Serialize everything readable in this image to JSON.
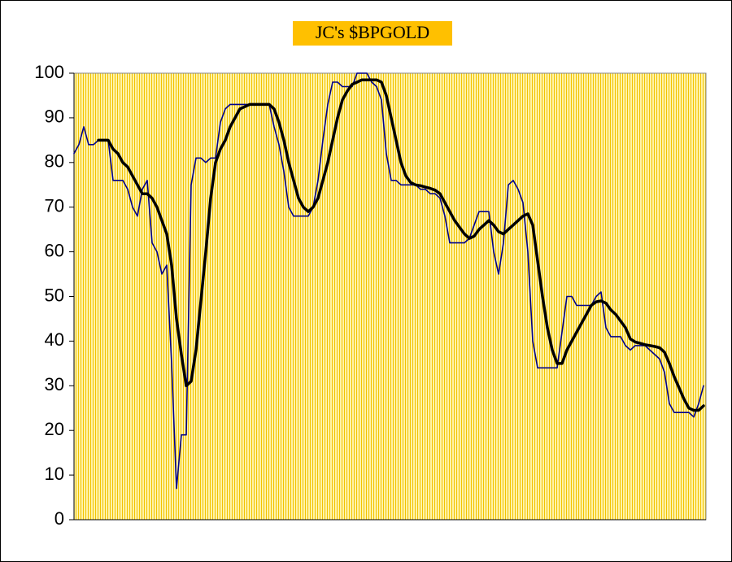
{
  "chart_data": {
    "type": "line",
    "title": "JC's $BPGOLD",
    "ylim": [
      0,
      100
    ],
    "yticks": [
      0,
      10,
      20,
      30,
      40,
      50,
      60,
      70,
      80,
      90,
      100
    ],
    "series": [
      {
        "color": "#00008b",
        "values": [
          82,
          84,
          88,
          84,
          84,
          85,
          85,
          85,
          76,
          76,
          76,
          74,
          70,
          68,
          74,
          76,
          62,
          60,
          55,
          57,
          35,
          7,
          19,
          19,
          75,
          81,
          81,
          80,
          81,
          81,
          89,
          92,
          93,
          93,
          93,
          93,
          93,
          93,
          93,
          93,
          93,
          88,
          84,
          78,
          70,
          68,
          68,
          68,
          68,
          70,
          76,
          85,
          93,
          98,
          98,
          97,
          97,
          97,
          100,
          100,
          100,
          98,
          97,
          94,
          82,
          76,
          76,
          75,
          75,
          75,
          75,
          74,
          74,
          73,
          73,
          72,
          68,
          62,
          62,
          62,
          62,
          63,
          66,
          69,
          69,
          69,
          60,
          55,
          62,
          75,
          76,
          74,
          71,
          60,
          40,
          34,
          34,
          34,
          34,
          34,
          42,
          50,
          50,
          48,
          48,
          48,
          48,
          50,
          51,
          43,
          41,
          41,
          41,
          39,
          38,
          39,
          39,
          39,
          38,
          37,
          36,
          33,
          26,
          24,
          24,
          24,
          24,
          23,
          26,
          30
        ]
      },
      {
        "color": "#000000",
        "values": [
          null,
          null,
          null,
          null,
          null,
          85,
          85,
          85,
          83,
          82,
          80,
          79,
          77,
          75,
          73,
          73,
          72,
          70,
          67,
          64,
          57,
          45,
          37,
          30,
          31,
          38,
          49,
          60,
          72,
          80,
          83,
          85,
          88,
          90,
          92,
          92.5,
          93,
          93,
          93,
          93,
          93,
          92,
          89,
          85,
          80,
          76,
          72,
          70,
          69,
          70,
          72,
          76,
          80,
          85,
          90,
          94,
          96,
          97.5,
          98,
          98.5,
          98.5,
          98.5,
          98.5,
          98,
          95,
          90,
          85,
          80,
          77,
          75.5,
          75,
          74.8,
          74.5,
          74.2,
          73.8,
          73,
          71,
          69,
          67,
          65.5,
          64,
          63,
          63.5,
          65,
          66,
          67,
          66,
          64.5,
          64,
          65,
          66,
          67,
          68,
          68.5,
          66,
          58,
          50,
          43,
          38,
          35,
          35,
          38,
          40,
          42,
          44,
          46,
          48,
          48.8,
          49,
          48.5,
          47,
          46,
          44.5,
          43,
          40.5,
          39.8,
          39.5,
          39.2,
          39,
          38.8,
          38.5,
          37.5,
          35,
          32,
          29.5,
          27,
          25,
          24.5,
          24.5,
          25.5
        ]
      }
    ]
  }
}
